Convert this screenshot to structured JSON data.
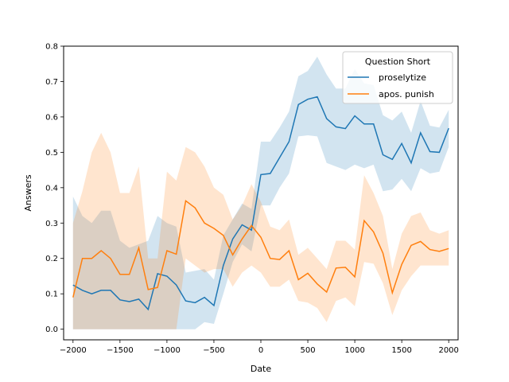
{
  "chart_data": {
    "type": "line",
    "xlabel": "Date",
    "ylabel": "Answers",
    "xlim": [
      -2100,
      2100
    ],
    "ylim": [
      -0.03,
      0.8
    ],
    "xticks": [
      -2000,
      -1500,
      -1000,
      -500,
      0,
      500,
      1000,
      1500,
      2000
    ],
    "yticks": [
      0.0,
      0.1,
      0.2,
      0.3,
      0.4,
      0.5,
      0.6,
      0.7,
      0.8
    ],
    "grid": false,
    "legend": {
      "title": "Question Short",
      "placement": "top-right"
    },
    "series": [
      {
        "name": "proselytize",
        "color": "#1f77b4",
        "x": [
          -2000,
          -1900,
          -1800,
          -1700,
          -1600,
          -1500,
          -1400,
          -1300,
          -1200,
          -1100,
          -1000,
          -900,
          -800,
          -700,
          -600,
          -500,
          -400,
          -300,
          -200,
          -100,
          0,
          100,
          200,
          300,
          400,
          500,
          600,
          700,
          800,
          900,
          1000,
          1100,
          1200,
          1300,
          1400,
          1500,
          1600,
          1700,
          1800,
          1900,
          2000
        ],
        "y": [
          0.125,
          0.11,
          0.1,
          0.11,
          0.11,
          0.083,
          0.078,
          0.085,
          0.056,
          0.157,
          0.15,
          0.125,
          0.08,
          0.075,
          0.09,
          0.067,
          0.18,
          0.255,
          0.295,
          0.28,
          0.437,
          0.44,
          0.485,
          0.53,
          0.635,
          0.65,
          0.657,
          0.595,
          0.572,
          0.567,
          0.603,
          0.58,
          0.58,
          0.493,
          0.48,
          0.525,
          0.47,
          0.555,
          0.502,
          0.5,
          0.568
        ],
        "lower": [
          0.0,
          0.0,
          0.0,
          0.0,
          0.0,
          0.0,
          0.0,
          0.0,
          0.0,
          0.0,
          0.0,
          0.0,
          0.0,
          0.0,
          0.02,
          0.015,
          0.1,
          0.19,
          0.24,
          0.22,
          0.35,
          0.35,
          0.4,
          0.44,
          0.545,
          0.548,
          0.545,
          0.47,
          0.46,
          0.45,
          0.465,
          0.455,
          0.465,
          0.39,
          0.395,
          0.425,
          0.39,
          0.455,
          0.44,
          0.445,
          0.515
        ],
        "upper": [
          0.375,
          0.32,
          0.3,
          0.335,
          0.335,
          0.25,
          0.23,
          0.24,
          0.25,
          0.32,
          0.3,
          0.29,
          0.16,
          0.165,
          0.17,
          0.14,
          0.265,
          0.31,
          0.355,
          0.34,
          0.53,
          0.53,
          0.57,
          0.615,
          0.715,
          0.73,
          0.77,
          0.72,
          0.68,
          0.68,
          0.735,
          0.695,
          0.69,
          0.605,
          0.59,
          0.615,
          0.555,
          0.645,
          0.575,
          0.57,
          0.62
        ]
      },
      {
        "name": "apos. punish",
        "color": "#ff7f0e",
        "x": [
          -2000,
          -1900,
          -1800,
          -1700,
          -1600,
          -1500,
          -1400,
          -1300,
          -1200,
          -1100,
          -1000,
          -900,
          -800,
          -700,
          -600,
          -500,
          -400,
          -300,
          -200,
          -100,
          0,
          100,
          200,
          300,
          400,
          500,
          600,
          700,
          800,
          900,
          1000,
          1100,
          1200,
          1300,
          1400,
          1500,
          1600,
          1700,
          1800,
          1900,
          2000
        ],
        "y": [
          0.09,
          0.2,
          0.2,
          0.222,
          0.2,
          0.155,
          0.155,
          0.23,
          0.112,
          0.118,
          0.222,
          0.212,
          0.363,
          0.343,
          0.3,
          0.285,
          0.265,
          0.21,
          0.255,
          0.293,
          0.26,
          0.2,
          0.197,
          0.222,
          0.14,
          0.158,
          0.128,
          0.105,
          0.173,
          0.175,
          0.148,
          0.307,
          0.275,
          0.215,
          0.103,
          0.183,
          0.237,
          0.248,
          0.225,
          0.22,
          0.228
        ],
        "lower": [
          0.0,
          0.0,
          0.0,
          0.0,
          0.0,
          0.0,
          0.0,
          0.0,
          0.0,
          0.0,
          0.0,
          0.0,
          0.2,
          0.18,
          0.16,
          0.17,
          0.17,
          0.12,
          0.16,
          0.18,
          0.16,
          0.12,
          0.12,
          0.14,
          0.08,
          0.075,
          0.06,
          0.02,
          0.08,
          0.09,
          0.065,
          0.19,
          0.185,
          0.13,
          0.04,
          0.11,
          0.15,
          0.18,
          0.18,
          0.18,
          0.18
        ],
        "upper": [
          0.3,
          0.39,
          0.5,
          0.555,
          0.5,
          0.385,
          0.385,
          0.46,
          0.2,
          0.2,
          0.445,
          0.42,
          0.515,
          0.5,
          0.46,
          0.4,
          0.38,
          0.31,
          0.35,
          0.41,
          0.36,
          0.29,
          0.28,
          0.31,
          0.21,
          0.23,
          0.2,
          0.17,
          0.25,
          0.25,
          0.225,
          0.435,
          0.385,
          0.32,
          0.17,
          0.27,
          0.32,
          0.33,
          0.28,
          0.27,
          0.28
        ]
      }
    ]
  }
}
